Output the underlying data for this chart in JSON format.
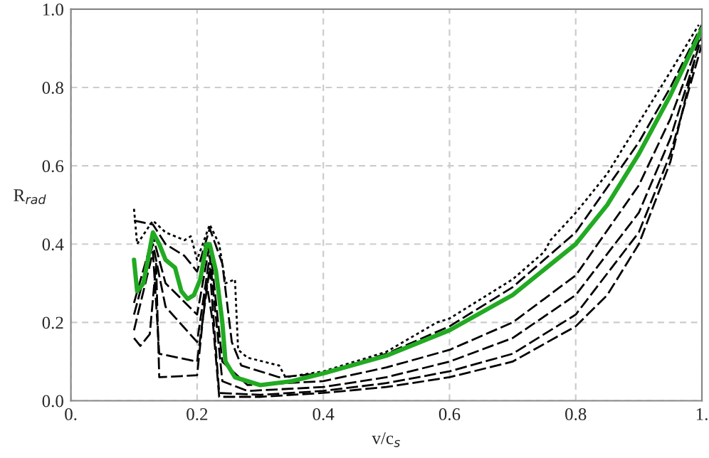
{
  "chart_data": {
    "type": "line",
    "xlabel": "v/c$_{s}$",
    "ylabel": "R$_{rad}$",
    "xlim": [
      0,
      1
    ],
    "ylim": [
      0,
      1
    ],
    "xticks": [
      {
        "value": 0,
        "label": "0."
      },
      0.2,
      0.4,
      0.6,
      0.8,
      {
        "value": 1,
        "label": "1."
      }
    ],
    "yticks": [
      {
        "value": 0,
        "label": "0.0"
      },
      0.2,
      0.4,
      0.6,
      0.8,
      {
        "value": 1,
        "label": "1.0"
      }
    ],
    "grid": true,
    "series": [
      {
        "color": "#000000",
        "line_style": "dotted",
        "x": [
          0.1,
          0.105,
          0.13,
          0.15,
          0.18,
          0.19,
          0.2,
          0.22,
          0.235,
          0.245,
          0.26,
          0.265,
          0.28,
          0.33,
          0.34,
          0.4,
          0.5,
          0.58,
          0.6,
          0.7,
          0.75,
          0.76,
          0.8,
          0.85,
          0.9,
          0.95,
          0.995
        ],
        "values": [
          0.49,
          0.4,
          0.46,
          0.43,
          0.41,
          0.42,
          0.36,
          0.45,
          0.4,
          0.3,
          0.31,
          0.13,
          0.11,
          0.09,
          0.06,
          0.075,
          0.125,
          0.2,
          0.21,
          0.31,
          0.38,
          0.41,
          0.48,
          0.58,
          0.71,
          0.84,
          0.96
        ]
      },
      {
        "color": "#000000",
        "line_style": "dashed",
        "x": [
          0.1,
          0.13,
          0.15,
          0.18,
          0.2,
          0.22,
          0.24,
          0.255,
          0.27,
          0.33,
          0.4,
          0.5,
          0.6,
          0.7,
          0.8,
          0.9,
          0.95,
          1.0
        ],
        "values": [
          0.46,
          0.45,
          0.4,
          0.37,
          0.33,
          0.44,
          0.35,
          0.15,
          0.09,
          0.06,
          0.07,
          0.12,
          0.19,
          0.29,
          0.43,
          0.66,
          0.8,
          0.96
        ]
      },
      {
        "color": "#000000",
        "line_style": "dashed",
        "x": [
          0.1,
          0.13,
          0.15,
          0.2,
          0.22,
          0.24,
          0.28,
          0.4,
          0.5,
          0.6,
          0.7,
          0.8,
          0.9,
          0.95,
          1.0
        ],
        "values": [
          0.25,
          0.42,
          0.3,
          0.22,
          0.4,
          0.1,
          0.04,
          0.05,
          0.085,
          0.13,
          0.2,
          0.32,
          0.55,
          0.72,
          0.94
        ]
      },
      {
        "color": "#000000",
        "line_style": "dashed",
        "x": [
          0.1,
          0.13,
          0.15,
          0.2,
          0.22,
          0.24,
          0.28,
          0.4,
          0.5,
          0.6,
          0.7,
          0.8,
          0.9,
          0.95,
          1.0
        ],
        "values": [
          0.22,
          0.4,
          0.24,
          0.15,
          0.37,
          0.05,
          0.025,
          0.035,
          0.06,
          0.1,
          0.16,
          0.27,
          0.48,
          0.67,
          0.93
        ]
      },
      {
        "color": "#000000",
        "line_style": "dashed",
        "x": [
          0.1,
          0.13,
          0.14,
          0.2,
          0.22,
          0.235,
          0.3,
          0.4,
          0.5,
          0.6,
          0.7,
          0.8,
          0.9,
          0.95,
          1.0
        ],
        "values": [
          0.18,
          0.38,
          0.12,
          0.1,
          0.34,
          0.02,
          0.015,
          0.025,
          0.045,
          0.075,
          0.12,
          0.22,
          0.43,
          0.63,
          0.91
        ]
      },
      {
        "color": "#000000",
        "line_style": "dashed",
        "x": [
          0.1,
          0.11,
          0.125,
          0.135,
          0.14,
          0.2,
          0.215,
          0.225,
          0.235,
          0.3,
          0.4,
          0.5,
          0.6,
          0.7,
          0.8,
          0.85,
          0.9,
          0.95,
          0.99
        ],
        "values": [
          0.16,
          0.14,
          0.17,
          0.35,
          0.06,
          0.065,
          0.3,
          0.2,
          0.01,
          0.01,
          0.02,
          0.035,
          0.06,
          0.1,
          0.19,
          0.27,
          0.4,
          0.61,
          0.88
        ]
      },
      {
        "color": "#22aa22",
        "line_style": "solid",
        "x": [
          0.1,
          0.105,
          0.115,
          0.13,
          0.14,
          0.15,
          0.165,
          0.175,
          0.185,
          0.195,
          0.205,
          0.215,
          0.22,
          0.23,
          0.24,
          0.245,
          0.26,
          0.3,
          0.35,
          0.4,
          0.5,
          0.6,
          0.7,
          0.8,
          0.85,
          0.9,
          0.95,
          1.0
        ],
        "values": [
          0.36,
          0.28,
          0.3,
          0.43,
          0.4,
          0.36,
          0.34,
          0.28,
          0.26,
          0.27,
          0.31,
          0.4,
          0.4,
          0.33,
          0.2,
          0.1,
          0.06,
          0.04,
          0.05,
          0.07,
          0.115,
          0.18,
          0.27,
          0.4,
          0.5,
          0.63,
          0.78,
          0.95
        ]
      }
    ]
  }
}
